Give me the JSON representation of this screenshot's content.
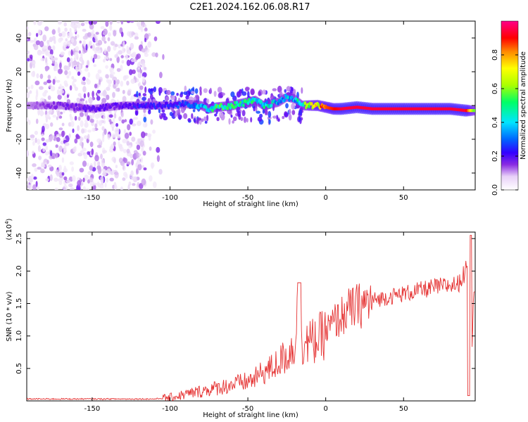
{
  "title": "C2E1.2024.162.06.08.R17",
  "chart_data": [
    {
      "type": "heatmap",
      "xlabel": "Height of straight line (km)",
      "ylabel": "Frequency (Hz)",
      "xlim": [
        -192,
        96
      ],
      "ylim": [
        -50,
        50
      ],
      "x_ticks": [
        -150,
        -100,
        -50,
        0,
        50
      ],
      "y_ticks": [
        -40,
        -20,
        0,
        20,
        40
      ],
      "colorbar": {
        "label": "Normalized spectral amplitude",
        "range": [
          0,
          1
        ],
        "ticks": [
          0.0,
          0.2,
          0.4,
          0.6,
          0.8
        ],
        "colormap": [
          "#ffffff",
          "#d8b8f0",
          "#8a2be2",
          "#4b00ff",
          "#0066ff",
          "#00e5ff",
          "#00ff66",
          "#aaff00",
          "#ffff00",
          "#ff8800",
          "#ff0000",
          "#ff0088"
        ]
      },
      "ridge": {
        "x": [
          -192,
          -170,
          -150,
          -130,
          -120,
          -100,
          -90,
          -80,
          -75,
          -70,
          -60,
          -50,
          -45,
          -40,
          -35,
          -30,
          -25,
          -20,
          -15,
          -10,
          -5,
          0,
          5,
          10,
          20,
          30,
          40,
          50,
          60,
          70,
          80,
          90,
          95
        ],
        "y": [
          0,
          0,
          -2,
          0,
          0,
          0,
          1,
          0,
          -2,
          -1,
          0,
          2,
          3,
          0,
          1,
          2,
          5,
          4,
          0,
          0,
          0,
          -1,
          -2,
          -2,
          -1,
          -2,
          -2,
          -2,
          -2,
          -2,
          -2,
          -3,
          -3
        ],
        "amplitude": [
          0.15,
          0.2,
          0.25,
          0.25,
          0.3,
          0.3,
          0.35,
          0.45,
          0.5,
          0.55,
          0.55,
          0.55,
          0.5,
          0.5,
          0.5,
          0.45,
          0.45,
          0.45,
          0.55,
          0.7,
          0.8,
          0.85,
          0.9,
          0.95,
          0.95,
          0.95,
          0.95,
          0.95,
          0.95,
          0.95,
          0.95,
          0.95,
          0.6
        ]
      },
      "scatter_region": {
        "x_range": [
          -192,
          -115
        ],
        "density": "high"
      }
    },
    {
      "type": "line",
      "xlabel": "Height of straight line (km)",
      "ylabel": "SNR (10 * v/v)",
      "y_multiplier": "(x10^4)",
      "xlim": [
        -192,
        96
      ],
      "ylim": [
        0,
        2.6
      ],
      "x_ticks": [
        -150,
        -100,
        -50,
        0,
        50
      ],
      "y_ticks": [
        0.5,
        1.0,
        1.5,
        2.0,
        2.5
      ],
      "y_tick_labels": [
        "0.5",
        "1.0",
        "1.5",
        "2.0",
        "2.5"
      ],
      "color": "#e53333",
      "series": [
        {
          "x": [
            -192,
            -160,
            -130,
            -110,
            -100,
            -90,
            -80,
            -70,
            -60,
            -50,
            -45,
            -40,
            -35,
            -30,
            -25,
            -20,
            -17,
            -15,
            -10,
            -5,
            0,
            5,
            10,
            15,
            20,
            25,
            30,
            40,
            50,
            60,
            70,
            80,
            85,
            90,
            92,
            93,
            95
          ],
          "y": [
            0.03,
            0.03,
            0.03,
            0.03,
            0.05,
            0.1,
            0.15,
            0.2,
            0.25,
            0.3,
            0.35,
            0.45,
            0.5,
            0.6,
            0.7,
            0.85,
            1.75,
            0.9,
            0.9,
            0.95,
            1.05,
            1.2,
            1.3,
            1.4,
            1.45,
            1.5,
            1.55,
            1.6,
            1.65,
            1.7,
            1.75,
            1.78,
            1.8,
            2.0,
            2.5,
            0.1,
            1.7
          ]
        }
      ]
    }
  ]
}
